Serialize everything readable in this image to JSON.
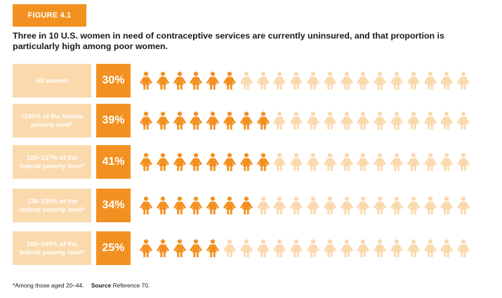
{
  "figure_label": "FIGURE 4.1",
  "title": "Three in 10 U.S. women in need of contraceptive services are currently uninsured, and that proportion is particularly high among poor women.",
  "footnote": {
    "note": "*Among those aged 20–44.",
    "source_label": "Source",
    "source_text": "Reference 70."
  },
  "colors": {
    "accent": "#f29122",
    "light": "#fad9ad",
    "icon_filled": "#f29122",
    "icon_empty": "#fad9ad"
  },
  "chart_data": {
    "type": "pictograph",
    "icons_per_row": 20,
    "unit": "%",
    "categories": [
      "All women",
      "<100% of the federal poverty level*",
      "100–137% of the federal poverty level*",
      "138–199% of the federal poverty level*",
      "200–249% of the federal poverty level*"
    ],
    "values": [
      30,
      39,
      41,
      34,
      25
    ],
    "value_labels": [
      "30%",
      "39%",
      "41%",
      "34%",
      "25%"
    ],
    "label_lines": [
      [
        "All women"
      ],
      [
        "<100% of the federal",
        "poverty level*"
      ],
      [
        "100–137% of the",
        "federal poverty level*"
      ],
      [
        "138–199% of the",
        "federal poverty level*"
      ],
      [
        "200–249% of the",
        "federal poverty level*"
      ]
    ]
  }
}
